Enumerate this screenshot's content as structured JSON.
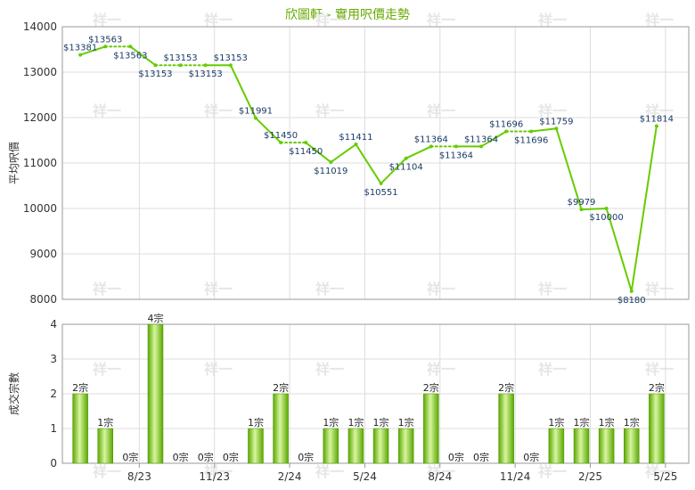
{
  "chart_data": [
    {
      "type": "line",
      "title": "欣圖軒 - 實用呎價走勢",
      "ylabel": "平均呎價",
      "ylim": [
        8000,
        14000
      ],
      "yticks": [
        "8000",
        "9000",
        "10000",
        "11000",
        "12000",
        "13000",
        "14000"
      ],
      "series": [
        {
          "values": [
            13381,
            13563,
            13563,
            13153,
            13153,
            13153,
            13153,
            11991,
            11450,
            11450,
            11019,
            11411,
            10551,
            11104,
            11364,
            11364,
            11364,
            11696,
            11696,
            11759,
            9979,
            10000,
            8180,
            11814
          ],
          "labels": [
            "$13381",
            "$13563",
            "$13563",
            "$13153",
            "$13153",
            "$13153",
            "$13153",
            "$11991",
            "$11450",
            "$11450",
            "$11019",
            "$11411",
            "$10551",
            "$11104",
            "$11364",
            "$11364",
            "$11364",
            "$11696",
            "$11696",
            "$11759",
            "$9979",
            "$10000",
            "$8180",
            "$11814"
          ],
          "carried_forward": [
            false,
            false,
            true,
            false,
            true,
            true,
            false,
            false,
            false,
            true,
            false,
            false,
            false,
            false,
            false,
            true,
            false,
            false,
            true,
            false,
            false,
            false,
            false,
            false
          ]
        }
      ],
      "color": "#66cc00"
    },
    {
      "type": "bar",
      "ylabel": "成交宗數",
      "ylim": [
        0,
        4
      ],
      "yticks": [
        "0",
        "1",
        "2",
        "3",
        "4"
      ],
      "values": [
        2,
        1,
        0,
        4,
        0,
        0,
        0,
        1,
        2,
        0,
        1,
        1,
        1,
        1,
        2,
        0,
        0,
        2,
        0,
        1,
        1,
        1,
        1,
        2
      ],
      "labels": [
        "2宗",
        "1宗",
        "0宗",
        "4宗",
        "0宗",
        "0宗",
        "0宗",
        "1宗",
        "2宗",
        "0宗",
        "1宗",
        "1宗",
        "1宗",
        "1宗",
        "2宗",
        "0宗",
        "0宗",
        "2宗",
        "0宗",
        "1宗",
        "1宗",
        "1宗",
        "1宗",
        "2宗"
      ],
      "xticks": [
        "8/23",
        "11/23",
        "2/24",
        "5/24",
        "8/24",
        "11/24",
        "2/25",
        "5/25"
      ],
      "color": "#66bb11"
    }
  ],
  "watermark": "祥一"
}
